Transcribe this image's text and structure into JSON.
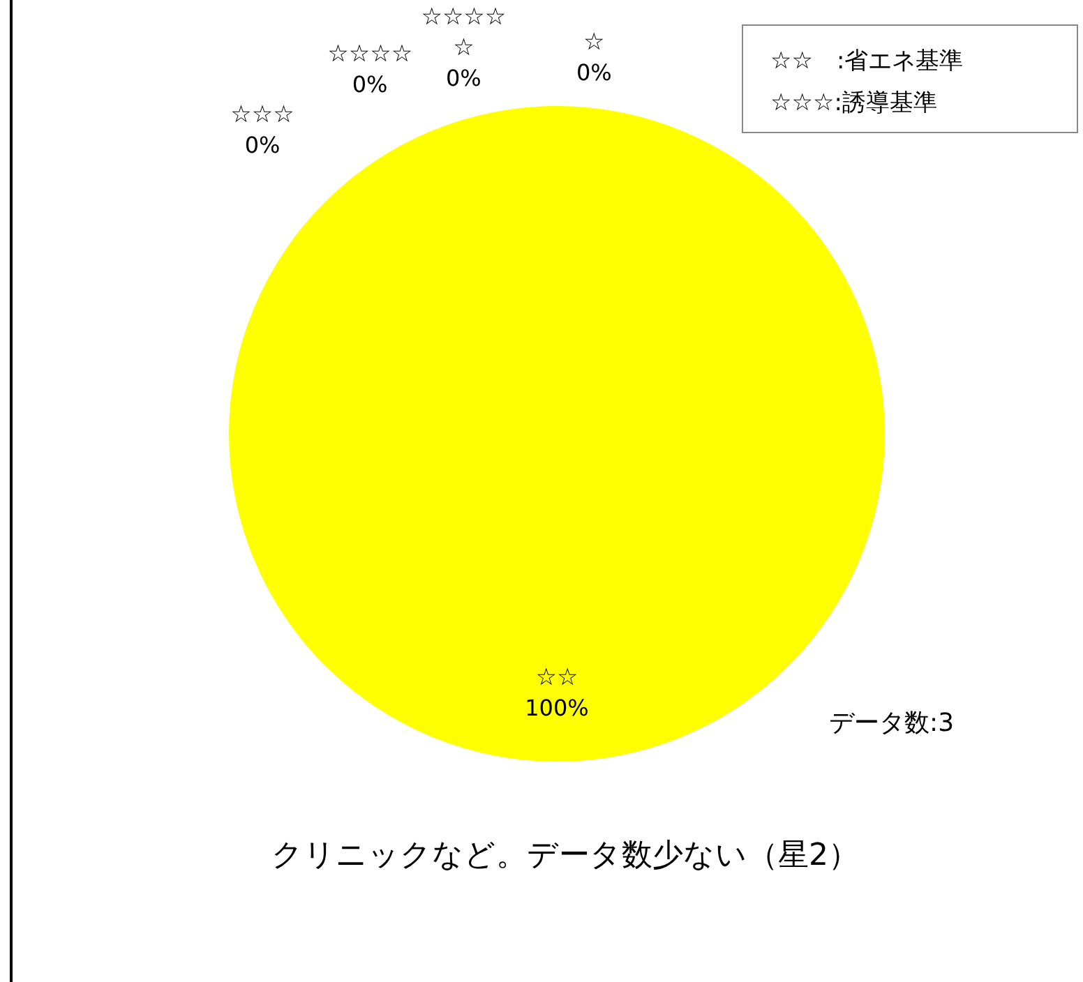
{
  "chart_data": {
    "type": "pie",
    "title": "クリニックなど。データ数少ない（星2）",
    "categories": [
      "☆",
      "☆☆",
      "☆☆☆",
      "☆☆☆☆",
      "☆☆☆☆☆"
    ],
    "values": [
      0,
      100,
      0,
      0,
      0
    ],
    "colors": [
      "#4472c4",
      "#ffff00",
      "#a5a5a5",
      "#ed7d31",
      "#5b9bd5"
    ],
    "value_labels": [
      "0%",
      "100%",
      "0%",
      "0%",
      "0%"
    ],
    "annotations": [
      "☆☆　:省エネ基準",
      "☆☆☆:誘導基準",
      "データ数:3"
    ]
  }
}
